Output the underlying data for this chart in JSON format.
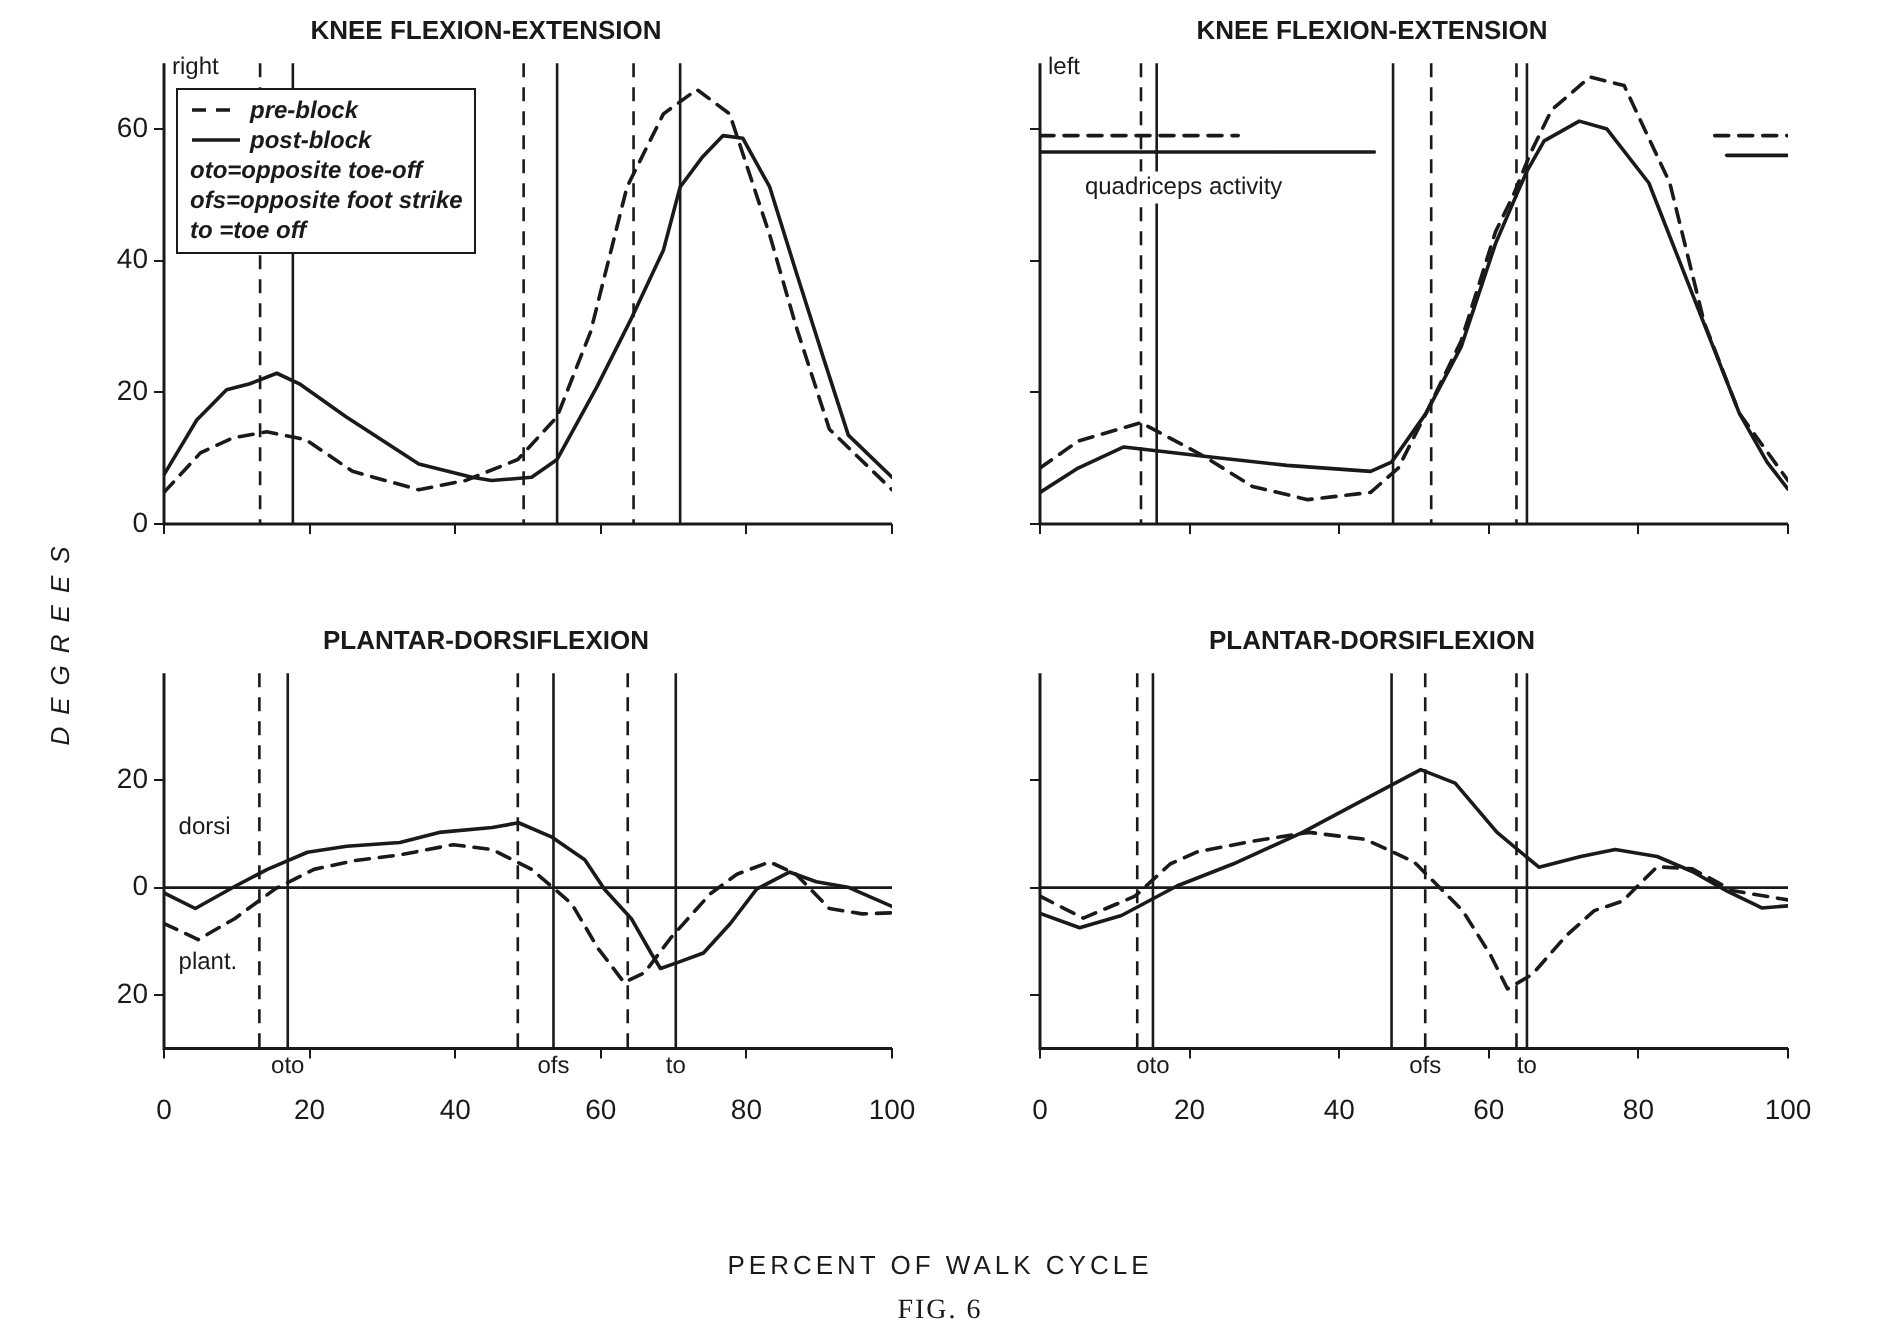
{
  "chart_data": [
    {
      "type": "line",
      "title": "KNEE FLEXION-EXTENSION",
      "ylabel": "DEGREES",
      "legend": "top left",
      "tick_labels": "y",
      "grid": false,
      "marker": "none",
      "xlim": [
        0,
        100
      ],
      "xticks": [
        {
          "value": 0,
          "label": null
        },
        {
          "value": 20,
          "label": null
        },
        {
          "value": 40,
          "label": null
        },
        {
          "value": 60,
          "label": null
        },
        {
          "value": 80,
          "label": null
        },
        {
          "value": 100,
          "label": null
        }
      ],
      "ylim": [
        0,
        70
      ],
      "yticks": [
        0,
        20,
        40,
        60
      ],
      "series": [
        {
          "name": "pre-block",
          "color": "#1a1a1a",
          "line_style": "dashed",
          "x": [
            0,
            5,
            9.5,
            14.1,
            19.5,
            25.9,
            35,
            41.4,
            48.6,
            54,
            58.6,
            63.6,
            68.6,
            73.2,
            77.7,
            83.2,
            86.8,
            91.4,
            100
          ],
          "values": [
            4.8,
            10.8,
            13.1,
            14,
            12.8,
            8,
            5.2,
            6.6,
            9.8,
            16.3,
            29.2,
            51.2,
            62.3,
            66,
            62.3,
            43.9,
            30.1,
            14.4,
            5.2
          ]
        },
        {
          "name": "post-block",
          "color": "#1a1a1a",
          "line_style": "solid",
          "x": [
            0,
            4.5,
            8.6,
            11.8,
            15.5,
            18.6,
            25,
            35,
            42.3,
            45,
            50.5,
            54,
            59.5,
            64.1,
            68.6,
            70.9,
            74,
            76.8,
            79.5,
            83.2,
            86.8,
            90.5,
            94,
            100
          ],
          "values": [
            7.5,
            15.8,
            20.4,
            21.3,
            22.9,
            21.3,
            16.3,
            9.1,
            7.1,
            6.6,
            7.1,
            9.8,
            20.9,
            31,
            41.6,
            51.2,
            55.8,
            59,
            58.6,
            51.2,
            38.4,
            25.5,
            13.5,
            7.1
          ]
        }
      ],
      "ref_lines": [
        {
          "axis": "x",
          "value": 64.5,
          "line_style": "dashed"
        },
        {
          "axis": "x",
          "value": 70.9,
          "line_style": "solid"
        },
        {
          "axis": "x",
          "value": 13.2,
          "line_style": "dashed"
        },
        {
          "axis": "x",
          "value": 17.7,
          "line_style": "solid"
        },
        {
          "axis": "x",
          "value": 49.4,
          "line_style": "dashed"
        },
        {
          "axis": "x",
          "value": 54,
          "line_style": "solid"
        }
      ],
      "annotations": [
        "right",
        "oto=opposite toe-off",
        "ofs=opposite foot strike",
        "to =toe off"
      ]
    },
    {
      "type": "line",
      "title": "KNEE FLEXION-EXTENSION",
      "tick_labels": false,
      "grid": false,
      "legend": false,
      "marker": "none",
      "xlim": [
        0,
        100
      ],
      "xticks": [
        0,
        20,
        40,
        60,
        80,
        100
      ],
      "ylim": [
        0,
        70
      ],
      "yticks": [
        0,
        20,
        40,
        60
      ],
      "series": [
        {
          "color": "#1a1a1a",
          "line_style": "dashed",
          "x": [
            0,
            5.1,
            13.5,
            21.9,
            28.4,
            35.8,
            44.2,
            47.9,
            51.6,
            56.3,
            60.9,
            63.3,
            65.6,
            68.4,
            73.5,
            78.1,
            84.2,
            88.8,
            93.5,
            100
          ],
          "values": [
            8.5,
            12.6,
            15.4,
            10.3,
            5.7,
            3.7,
            4.8,
            8.5,
            16.8,
            27.8,
            44.4,
            50,
            56.4,
            62.9,
            67.9,
            66.6,
            51.8,
            30.6,
            16.8,
            6.6
          ]
        },
        {
          "color": "#1a1a1a",
          "line_style": "solid",
          "x": [
            0,
            5.1,
            11.2,
            21.9,
            33,
            44.2,
            47,
            51.6,
            56.3,
            60.9,
            63.7,
            65.1,
            67.4,
            72.1,
            75.8,
            81.4,
            88.4,
            93.5,
            97.2,
            100
          ],
          "values": [
            4.8,
            8.5,
            11.7,
            10.3,
            8.9,
            8,
            9.4,
            16.8,
            26.9,
            42.6,
            50,
            53.6,
            58.2,
            61.2,
            60,
            51.8,
            31.5,
            16.8,
            9.4,
            5.3
          ]
        },
        {
          "color": "#1a1a1a",
          "line_style": "dashed",
          "x": [
            0,
            26.5
          ],
          "values": [
            59,
            59
          ]
        },
        {
          "color": "#1a1a1a",
          "line_style": "solid",
          "x": [
            0,
            44.7
          ],
          "values": [
            56.5,
            56.5
          ]
        },
        {
          "color": "#1a1a1a",
          "line_style": "dashed",
          "x": [
            90.2,
            100
          ],
          "values": [
            59,
            59
          ]
        },
        {
          "color": "#1a1a1a",
          "line_style": "solid",
          "x": [
            91.8,
            100
          ],
          "values": [
            56,
            56
          ]
        }
      ],
      "ref_lines": [
        {
          "axis": "x",
          "value": 63.7,
          "line_style": "dashed"
        },
        {
          "axis": "x",
          "value": 65.1,
          "line_style": "solid"
        },
        {
          "axis": "x",
          "value": 13.5,
          "line_style": "dashed"
        },
        {
          "axis": "x",
          "value": 15.6,
          "line_style": "solid"
        },
        {
          "axis": "x",
          "value": 47.2,
          "line_style": "solid"
        },
        {
          "axis": "x",
          "value": 52.3,
          "line_style": "dashed"
        }
      ],
      "annotations": [
        "left",
        "quadriceps activity"
      ]
    },
    {
      "type": "line",
      "title": "PLANTAR-DORSIFLEXION",
      "xlabel": "PERCENT OF WALK CYCLE",
      "grid": false,
      "legend": false,
      "marker": "none",
      "xlim": [
        0,
        100
      ],
      "xticks": [
        0,
        20,
        40,
        60,
        80,
        100
      ],
      "ylim": [
        -30,
        40
      ],
      "yticks": [
        {
          "value": -20,
          "label": "20"
        },
        0,
        20
      ],
      "series": [
        {
          "color": "#1a1a1a",
          "line_style": "dashed",
          "x": [
            0,
            4.7,
            9.7,
            15.2,
            20.6,
            26,
            32.4,
            39.7,
            45.1,
            50.5,
            56,
            59.6,
            63.2,
            66,
            69.6,
            75,
            78.7,
            83.2,
            86.8,
            91.4,
            95.9,
            100
          ],
          "values": [
            -6.7,
            -9.7,
            -5.8,
            -0.3,
            3.4,
            5,
            6.1,
            8,
            7.1,
            3.4,
            -3,
            -11.3,
            -17.7,
            -15.9,
            -9.4,
            -1.2,
            2.5,
            4.8,
            2.5,
            -3.9,
            -4.9,
            -4.7
          ]
        },
        {
          "color": "#1a1a1a",
          "line_style": "solid",
          "x": [
            0,
            4.3,
            9.7,
            14.2,
            19.7,
            25.1,
            32.4,
            37.8,
            45.1,
            48.7,
            53.3,
            57.8,
            60.5,
            64.2,
            66.9,
            68.2,
            70.5,
            74.1,
            77.8,
            81.4,
            85.9,
            89.6,
            94.1,
            100
          ],
          "values": [
            -1,
            -3.9,
            0.2,
            3.4,
            6.6,
            7.7,
            8.4,
            10.3,
            11.2,
            12.1,
            9.4,
            5.2,
            -0.3,
            -5.8,
            -12.2,
            -15.1,
            -14,
            -12.2,
            -6.7,
            -0.3,
            2.9,
            1.1,
            0,
            -3.5
          ]
        }
      ],
      "ref_lines": [
        {
          "axis": "y",
          "value": 0,
          "line_style": "solid"
        },
        {
          "axis": "x",
          "value": 63.7,
          "line_style": "dashed"
        },
        {
          "axis": "x",
          "value": 70.3,
          "line_style": "solid",
          "label": "to"
        },
        {
          "axis": "x",
          "value": 13.1,
          "line_style": "dashed"
        },
        {
          "axis": "x",
          "value": 17,
          "line_style": "solid",
          "label": "oto"
        },
        {
          "axis": "x",
          "value": 48.6,
          "line_style": "dashed"
        },
        {
          "axis": "x",
          "value": 53.5,
          "line_style": "solid",
          "label": "ofs"
        }
      ],
      "annotations": [
        "dorsi",
        "plant."
      ]
    },
    {
      "type": "line",
      "title": "PLANTAR-DORSIFLEXION",
      "tick_labels": "x",
      "grid": false,
      "legend": false,
      "marker": "none",
      "xlim": [
        0,
        100
      ],
      "xticks": [
        0,
        20,
        40,
        60,
        80,
        100
      ],
      "ylim": [
        -30,
        40
      ],
      "yticks": [
        -20,
        0,
        20
      ],
      "series": [
        {
          "color": "#1a1a1a",
          "line_style": "dashed",
          "x": [
            0,
            5.8,
            12.7,
            17.4,
            21.1,
            28.6,
            36,
            43.5,
            50,
            56.5,
            60.2,
            62.5,
            65.8,
            70.4,
            74.1,
            77.9,
            82.5,
            87.2,
            92.7,
            100
          ],
          "values": [
            -1.6,
            -5.7,
            -1.6,
            4.4,
            6.7,
            8.7,
            10.3,
            9,
            4.8,
            -4.3,
            -12.5,
            -18.9,
            -16.2,
            -8.9,
            -4.3,
            -2.5,
            3.9,
            3.5,
            -0.6,
            -2.3
          ]
        },
        {
          "color": "#1a1a1a",
          "line_style": "solid",
          "x": [
            0,
            5.3,
            10.9,
            18.3,
            25.8,
            35.1,
            42.5,
            50.9,
            55.5,
            61.1,
            66.7,
            72.3,
            76.9,
            82.5,
            87.2,
            91.8,
            96.5,
            100
          ],
          "values": [
            -4.8,
            -7.5,
            -5.2,
            0.3,
            4.4,
            10.3,
            15.8,
            22,
            19.5,
            10.3,
            3.8,
            5.8,
            7.1,
            5.8,
            3,
            -0.6,
            -3.8,
            -3.4
          ]
        }
      ],
      "ref_lines": [
        {
          "axis": "y",
          "value": 0,
          "line_style": "solid"
        },
        {
          "axis": "x",
          "value": 63.7,
          "line_style": "dashed"
        },
        {
          "axis": "x",
          "value": 65.1,
          "line_style": "solid",
          "label": "to"
        },
        {
          "axis": "x",
          "value": 13,
          "line_style": "dashed"
        },
        {
          "axis": "x",
          "value": 15.1,
          "line_style": "solid",
          "label": "oto"
        },
        {
          "axis": "x",
          "value": 47,
          "line_style": "solid"
        },
        {
          "axis": "x",
          "value": 51.5,
          "line_style": "dashed",
          "label": "ofs"
        }
      ],
      "annotations": [
        "FIG. 6"
      ]
    }
  ]
}
